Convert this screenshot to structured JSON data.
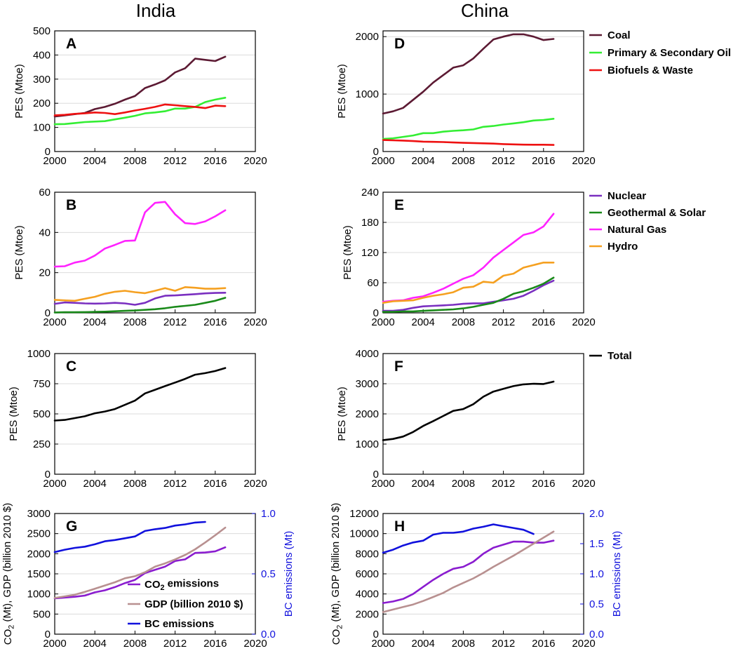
{
  "figure": {
    "col_titles": [
      "India",
      "China"
    ]
  },
  "legends": {
    "top": [
      {
        "label": "Coal",
        "color": "#5c1a33"
      },
      {
        "label": "Primary & Secondary Oil",
        "color": "#33ee33"
      },
      {
        "label": "Biofuels & Waste",
        "color": "#ee1111"
      }
    ],
    "mid": [
      {
        "label": "Nuclear",
        "color": "#7a2fc0"
      },
      {
        "label": "Geothermal & Solar",
        "color": "#1a8a1a"
      },
      {
        "label": "Natural Gas",
        "color": "#ff22ff"
      },
      {
        "label": "Hydro",
        "color": "#f5a020"
      }
    ],
    "total": [
      {
        "label": "Total",
        "color": "#000000"
      }
    ],
    "g_inset": [
      {
        "label": "CO₂ emissions",
        "color": "#8a1ccf"
      },
      {
        "label": "GDP (billion 2010 $)",
        "color": "#b89090"
      },
      {
        "label": "BC emissions",
        "color": "#1111dd"
      }
    ]
  },
  "chart_data": [
    {
      "id": "A",
      "type": "line",
      "panel_label": "A",
      "region": "India",
      "ylabel": "PES (Mtoe)",
      "xlim": [
        2000,
        2020
      ],
      "ylim": [
        0,
        500
      ],
      "xticks": [
        2000,
        2004,
        2008,
        2012,
        2016,
        2020
      ],
      "yticks": [
        0,
        100,
        200,
        300,
        400,
        500
      ],
      "x": [
        2000,
        2001,
        2002,
        2003,
        2004,
        2005,
        2006,
        2007,
        2008,
        2009,
        2010,
        2011,
        2012,
        2013,
        2014,
        2015,
        2016,
        2017
      ],
      "series": [
        {
          "name": "Coal",
          "color": "#5c1a33",
          "values": [
            145,
            150,
            155,
            160,
            176,
            185,
            198,
            215,
            230,
            263,
            278,
            295,
            328,
            345,
            385,
            380,
            375,
            393
          ]
        },
        {
          "name": "Primary & Secondary Oil",
          "color": "#33ee33",
          "values": [
            113,
            114,
            118,
            122,
            124,
            126,
            133,
            140,
            148,
            158,
            162,
            167,
            178,
            178,
            185,
            205,
            215,
            223
          ]
        },
        {
          "name": "Biofuels & Waste",
          "color": "#ee1111",
          "values": [
            150,
            152,
            156,
            158,
            162,
            160,
            155,
            162,
            170,
            177,
            185,
            195,
            192,
            188,
            185,
            180,
            190,
            188
          ]
        }
      ]
    },
    {
      "id": "D",
      "type": "line",
      "panel_label": "D",
      "region": "China",
      "ylabel": "PES (Mtoe)",
      "xlim": [
        2000,
        2020
      ],
      "ylim": [
        0,
        2100
      ],
      "xticks": [
        2000,
        2004,
        2008,
        2012,
        2016,
        2020
      ],
      "yticks": [
        0,
        1000,
        2000
      ],
      "x": [
        2000,
        2001,
        2002,
        2003,
        2004,
        2005,
        2006,
        2007,
        2008,
        2009,
        2010,
        2011,
        2012,
        2013,
        2014,
        2015,
        2016,
        2017
      ],
      "series": [
        {
          "name": "Coal",
          "color": "#5c1a33",
          "values": [
            660,
            700,
            760,
            900,
            1040,
            1200,
            1330,
            1460,
            1500,
            1620,
            1790,
            1950,
            2000,
            2040,
            2040,
            2000,
            1940,
            1960
          ]
        },
        {
          "name": "Primary & Secondary Oil",
          "color": "#33ee33",
          "values": [
            220,
            230,
            255,
            280,
            320,
            320,
            345,
            360,
            370,
            385,
            430,
            445,
            470,
            490,
            510,
            540,
            550,
            570
          ]
        },
        {
          "name": "Biofuels & Waste",
          "color": "#ee1111",
          "values": [
            200,
            195,
            190,
            182,
            172,
            168,
            165,
            158,
            152,
            148,
            143,
            138,
            130,
            125,
            120,
            118,
            118,
            115
          ]
        }
      ]
    },
    {
      "id": "B",
      "type": "line",
      "panel_label": "B",
      "region": "India",
      "ylabel": "PES (Mtoe)",
      "xlim": [
        2000,
        2020
      ],
      "ylim": [
        0,
        60
      ],
      "xticks": [
        2000,
        2004,
        2008,
        2012,
        2016,
        2020
      ],
      "yticks": [
        0,
        20,
        40,
        60
      ],
      "x": [
        2000,
        2001,
        2002,
        2003,
        2004,
        2005,
        2006,
        2007,
        2008,
        2009,
        2010,
        2011,
        2012,
        2013,
        2014,
        2015,
        2016,
        2017
      ],
      "series": [
        {
          "name": "Nuclear",
          "color": "#7a2fc0",
          "values": [
            4.5,
            5.2,
            5.0,
            4.7,
            4.6,
            4.7,
            5.0,
            4.7,
            4.0,
            5.0,
            7.2,
            8.5,
            8.7,
            9.0,
            9.3,
            9.7,
            9.9,
            10.0
          ]
        },
        {
          "name": "Geothermal & Solar",
          "color": "#1a8a1a",
          "values": [
            0.2,
            0.3,
            0.3,
            0.4,
            0.5,
            0.6,
            0.8,
            1.0,
            1.2,
            1.5,
            1.8,
            2.3,
            3.0,
            3.5,
            4.0,
            5.0,
            6.0,
            7.5
          ]
        },
        {
          "name": "Natural Gas",
          "color": "#ff22ff",
          "values": [
            23,
            23.2,
            25,
            26,
            28.5,
            32,
            33.8,
            35.8,
            36,
            50,
            54.7,
            55.2,
            49,
            44.6,
            44.2,
            45.5,
            48,
            51
          ]
        },
        {
          "name": "Hydro",
          "color": "#f5a020",
          "values": [
            6.5,
            6.2,
            6.0,
            7.0,
            8.0,
            9.5,
            10.5,
            11.0,
            10.3,
            9.8,
            11.0,
            12.3,
            11.0,
            12.8,
            12.5,
            12.0,
            12.0,
            12.3
          ]
        }
      ]
    },
    {
      "id": "E",
      "type": "line",
      "panel_label": "E",
      "region": "China",
      "ylabel": "PES (Mtoe)",
      "xlim": [
        2000,
        2020
      ],
      "ylim": [
        0,
        240
      ],
      "xticks": [
        2000,
        2004,
        2008,
        2012,
        2016,
        2020
      ],
      "yticks": [
        0,
        60,
        120,
        180,
        240
      ],
      "x": [
        2000,
        2001,
        2002,
        2003,
        2004,
        2005,
        2006,
        2007,
        2008,
        2009,
        2010,
        2011,
        2012,
        2013,
        2014,
        2015,
        2016,
        2017
      ],
      "series": [
        {
          "name": "Nuclear",
          "color": "#7a2fc0",
          "values": [
            4,
            4,
            6,
            10,
            13,
            14,
            15,
            16,
            18,
            19,
            19,
            22,
            25,
            28,
            34,
            44,
            55,
            64
          ]
        },
        {
          "name": "Geothermal & Solar",
          "color": "#1a8a1a",
          "values": [
            2,
            2,
            3,
            3,
            4,
            5,
            6,
            7,
            9,
            12,
            16,
            20,
            28,
            38,
            43,
            50,
            58,
            70
          ]
        },
        {
          "name": "Natural Gas",
          "color": "#ff22ff",
          "values": [
            22,
            24,
            25,
            30,
            33,
            40,
            48,
            58,
            68,
            75,
            90,
            110,
            125,
            140,
            155,
            160,
            172,
            197
          ]
        },
        {
          "name": "Hydro",
          "color": "#f5a020",
          "values": [
            20,
            23,
            24,
            25,
            30,
            34,
            37,
            41,
            50,
            52,
            62,
            60,
            74,
            78,
            90,
            95,
            100,
            100
          ]
        }
      ]
    },
    {
      "id": "C",
      "type": "line",
      "panel_label": "C",
      "region": "India",
      "ylabel": "PES (Mtoe)",
      "xlim": [
        2000,
        2020
      ],
      "ylim": [
        0,
        1000
      ],
      "xticks": [
        2000,
        2004,
        2008,
        2012,
        2016,
        2020
      ],
      "yticks": [
        0,
        250,
        500,
        750,
        1000
      ],
      "x": [
        2000,
        2001,
        2002,
        2003,
        2004,
        2005,
        2006,
        2007,
        2008,
        2009,
        2010,
        2011,
        2012,
        2013,
        2014,
        2015,
        2016,
        2017
      ],
      "series": [
        {
          "name": "Total",
          "color": "#000000",
          "values": [
            445,
            450,
            465,
            480,
            505,
            520,
            540,
            575,
            610,
            670,
            700,
            730,
            760,
            790,
            825,
            838,
            855,
            880
          ]
        }
      ]
    },
    {
      "id": "F",
      "type": "line",
      "panel_label": "F",
      "region": "China",
      "ylabel": "PES (Mtoe)",
      "xlim": [
        2000,
        2020
      ],
      "ylim": [
        0,
        4000
      ],
      "xticks": [
        2000,
        2004,
        2008,
        2012,
        2016,
        2020
      ],
      "yticks": [
        0,
        1000,
        2000,
        3000,
        4000
      ],
      "x": [
        2000,
        2001,
        2002,
        2003,
        2004,
        2005,
        2006,
        2007,
        2008,
        2009,
        2010,
        2011,
        2012,
        2013,
        2014,
        2015,
        2016,
        2017
      ],
      "series": [
        {
          "name": "Total",
          "color": "#000000",
          "values": [
            1130,
            1170,
            1250,
            1400,
            1600,
            1760,
            1930,
            2100,
            2160,
            2320,
            2570,
            2740,
            2830,
            2920,
            2980,
            3000,
            2990,
            3070
          ]
        }
      ]
    },
    {
      "id": "G",
      "type": "line",
      "panel_label": "G",
      "region": "India",
      "ylabel": "CO₂ (Mt), GDP (billion 2010 $)",
      "y2label": "BC emissions (Mt)",
      "xlim": [
        2000,
        2020
      ],
      "ylim": [
        0,
        3000
      ],
      "y2lim": [
        0,
        1
      ],
      "xticks": [
        2000,
        2004,
        2008,
        2012,
        2016,
        2020
      ],
      "yticks": [
        0,
        500,
        1000,
        1500,
        2000,
        2500,
        3000
      ],
      "y2ticks": [
        0.0,
        0.5,
        1.0
      ],
      "y2ticklabels": [
        "0.0",
        "0.5",
        "1.0"
      ],
      "x": [
        2000,
        2001,
        2002,
        2003,
        2004,
        2005,
        2006,
        2007,
        2008,
        2009,
        2010,
        2011,
        2012,
        2013,
        2014,
        2015,
        2016,
        2017
      ],
      "series": [
        {
          "name": "CO₂ emissions",
          "axis": "left",
          "color": "#8a1ccf",
          "values": [
            890,
            910,
            930,
            960,
            1040,
            1090,
            1170,
            1270,
            1350,
            1520,
            1600,
            1680,
            1820,
            1860,
            2020,
            2030,
            2060,
            2160
          ]
        },
        {
          "name": "GDP (billion 2010 $)",
          "axis": "left",
          "color": "#b89090",
          "values": [
            900,
            940,
            980,
            1050,
            1130,
            1210,
            1290,
            1390,
            1440,
            1540,
            1680,
            1760,
            1860,
            1970,
            2110,
            2280,
            2460,
            2650
          ]
        },
        {
          "name": "BC emissions",
          "axis": "right",
          "color": "#1111dd",
          "x": [
            2000,
            2001,
            2002,
            2003,
            2004,
            2005,
            2006,
            2007,
            2008,
            2009,
            2010,
            2011,
            2012,
            2013,
            2014,
            2015
          ],
          "values": [
            0.68,
            0.7,
            0.715,
            0.725,
            0.745,
            0.77,
            0.78,
            0.795,
            0.81,
            0.855,
            0.87,
            0.88,
            0.9,
            0.91,
            0.925,
            0.93
          ]
        }
      ]
    },
    {
      "id": "H",
      "type": "line",
      "panel_label": "H",
      "region": "China",
      "ylabel": "CO₂ (Mt), GDP (billion 2010 $)",
      "y2label": "BC emissions (Mt)",
      "xlim": [
        2000,
        2020
      ],
      "ylim": [
        0,
        12000
      ],
      "y2lim": [
        0,
        2
      ],
      "xticks": [
        2000,
        2004,
        2008,
        2012,
        2016,
        2020
      ],
      "yticks": [
        0,
        2000,
        4000,
        6000,
        8000,
        10000,
        12000
      ],
      "y2ticks": [
        0.0,
        0.5,
        1.0,
        1.5,
        2.0
      ],
      "y2ticklabels": [
        "0.0",
        "0.5",
        "1.0",
        "1.5",
        "2.0"
      ],
      "x": [
        2000,
        2001,
        2002,
        2003,
        2004,
        2005,
        2006,
        2007,
        2008,
        2009,
        2010,
        2011,
        2012,
        2013,
        2014,
        2015,
        2016,
        2017
      ],
      "series": [
        {
          "name": "CO₂ emissions",
          "axis": "left",
          "color": "#8a1ccf",
          "values": [
            3100,
            3250,
            3500,
            4000,
            4700,
            5400,
            6000,
            6500,
            6700,
            7200,
            8000,
            8600,
            8900,
            9200,
            9200,
            9100,
            9100,
            9300
          ]
        },
        {
          "name": "GDP (billion 2010 $)",
          "axis": "left",
          "color": "#b89090",
          "values": [
            2200,
            2450,
            2700,
            2950,
            3300,
            3700,
            4100,
            4650,
            5100,
            5550,
            6100,
            6700,
            7250,
            7800,
            8400,
            9000,
            9600,
            10200
          ]
        },
        {
          "name": "BC emissions",
          "axis": "right",
          "color": "#1111dd",
          "x": [
            2000,
            2001,
            2002,
            2003,
            2004,
            2005,
            2006,
            2007,
            2008,
            2009,
            2010,
            2011,
            2012,
            2013,
            2014,
            2015
          ],
          "values": [
            1.35,
            1.4,
            1.47,
            1.52,
            1.55,
            1.65,
            1.68,
            1.68,
            1.7,
            1.75,
            1.78,
            1.82,
            1.79,
            1.76,
            1.73,
            1.66
          ]
        }
      ]
    }
  ]
}
